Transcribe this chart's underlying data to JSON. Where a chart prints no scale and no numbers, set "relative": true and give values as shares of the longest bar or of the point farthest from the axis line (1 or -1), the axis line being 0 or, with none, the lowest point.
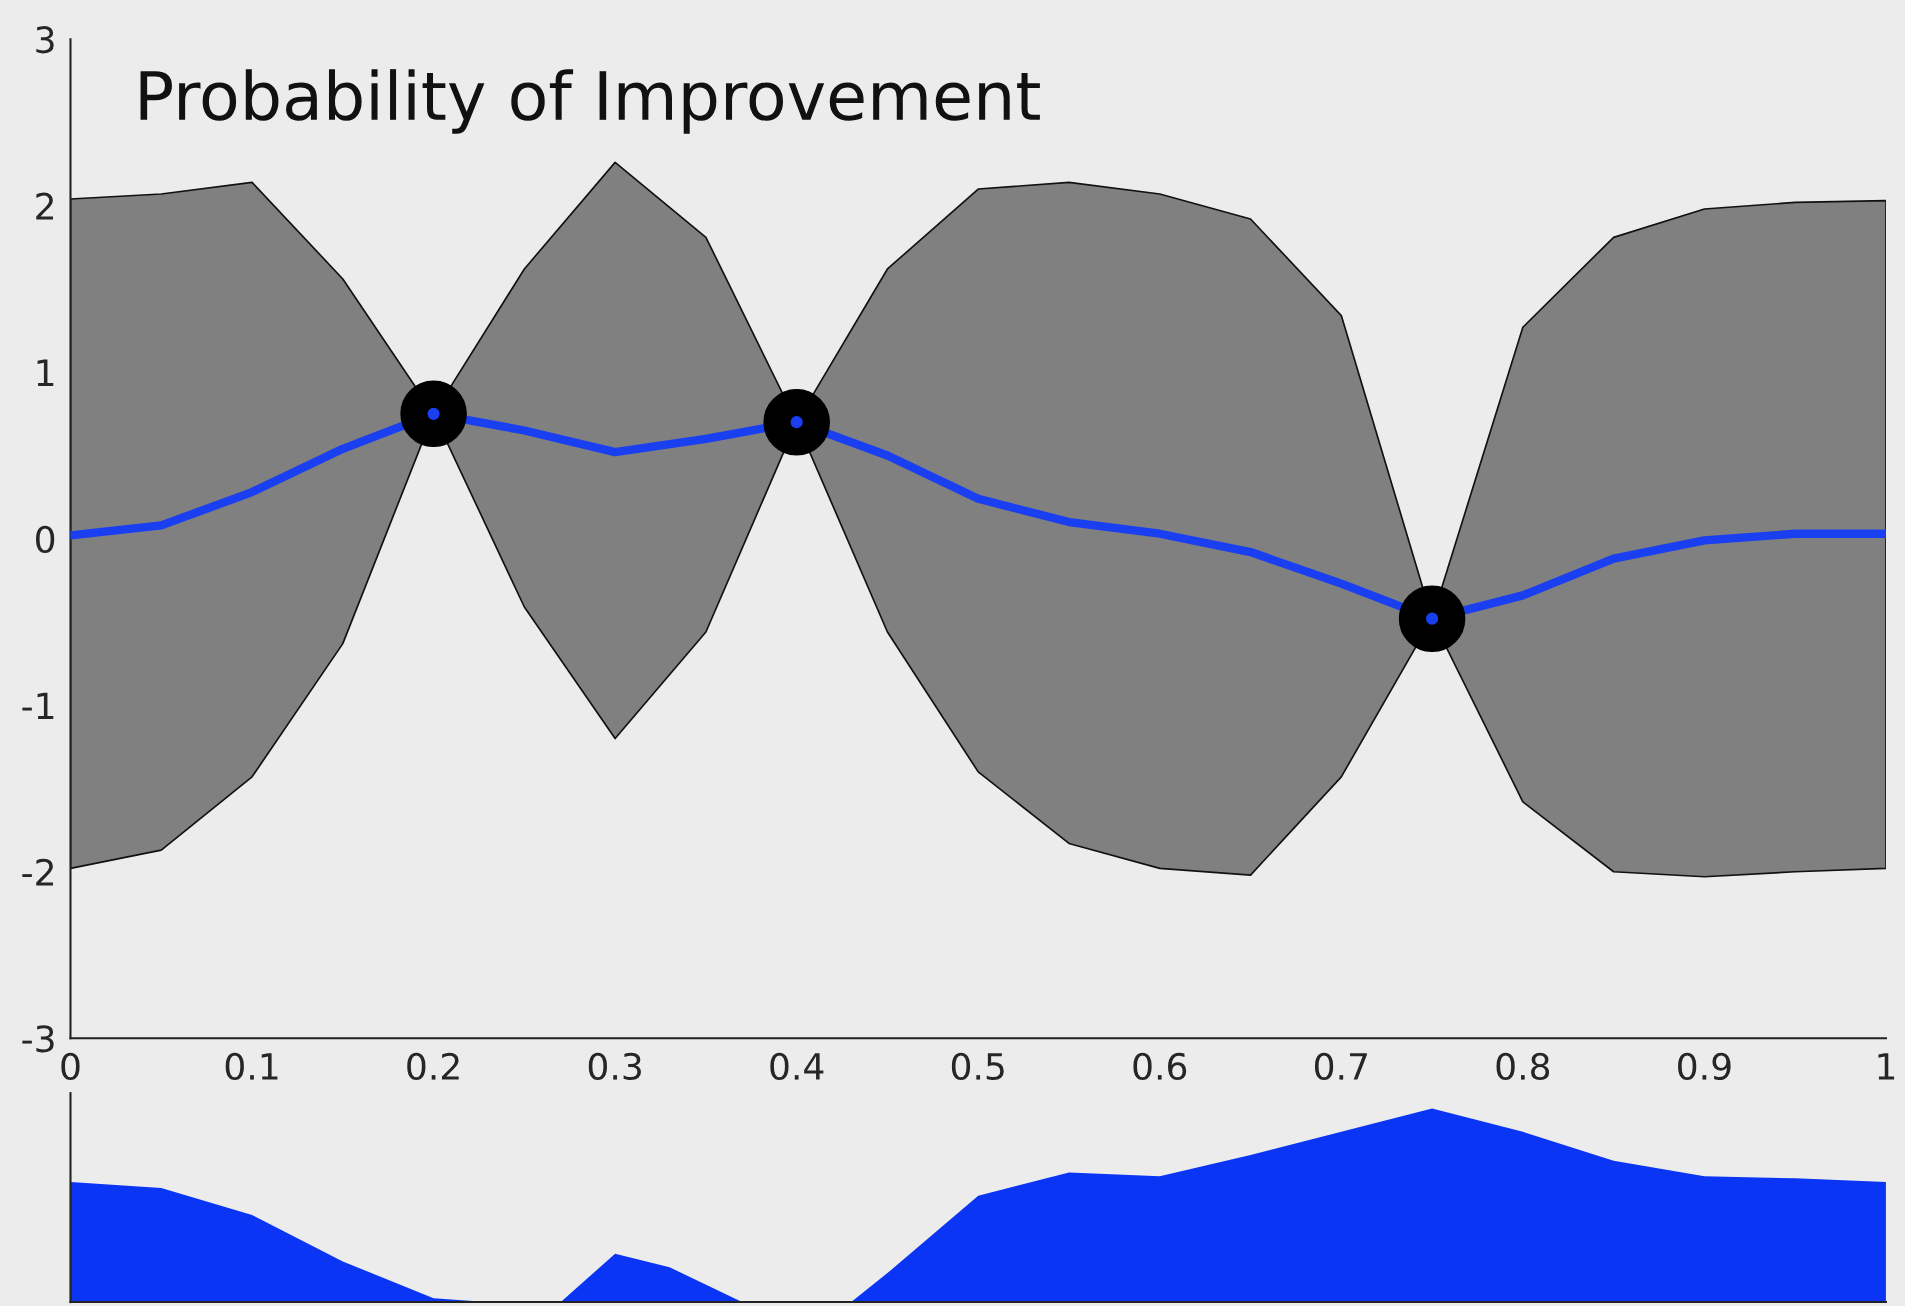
{
  "chart_data": [
    {
      "type": "line",
      "title": "Probability of Improvement",
      "x": [
        0,
        0.05,
        0.1,
        0.15,
        0.2,
        0.25,
        0.3,
        0.35,
        0.4,
        0.45,
        0.5,
        0.55,
        0.6,
        0.65,
        0.7,
        0.75,
        0.8,
        0.85,
        0.9,
        0.95,
        1.0
      ],
      "series": [
        {
          "color": "#1a3ff0",
          "values": [
            0.02,
            0.08,
            0.28,
            0.54,
            0.75,
            0.65,
            0.52,
            0.6,
            0.7,
            0.5,
            0.24,
            0.1,
            0.03,
            -0.08,
            -0.27,
            -0.48,
            -0.34,
            -0.12,
            -0.01,
            0.03,
            0.03
          ],
          "lower": [
            -1.98,
            -1.87,
            -1.43,
            -0.63,
            0.75,
            -0.41,
            -1.2,
            -0.56,
            0.7,
            -0.56,
            -1.4,
            -1.83,
            -1.98,
            -2.02,
            -1.43,
            -0.48,
            -1.58,
            -2.0,
            -2.03,
            -2.0,
            -1.98
          ],
          "upper": [
            2.04,
            2.07,
            2.14,
            1.56,
            0.75,
            1.62,
            2.26,
            1.81,
            0.7,
            1.62,
            2.1,
            2.14,
            2.07,
            1.92,
            1.34,
            -0.48,
            1.27,
            1.81,
            1.98,
            2.02,
            2.03
          ]
        },
        {
          "type": "scatter",
          "color": "#000000",
          "marker": "circle",
          "x": [
            0.2,
            0.4,
            0.75
          ],
          "values": [
            0.75,
            0.7,
            -0.48
          ]
        }
      ],
      "xlim": [
        0,
        1
      ],
      "xticks": [
        0,
        0.1,
        0.2,
        0.3,
        0.4,
        0.5,
        0.6,
        0.7,
        0.8,
        0.9,
        1
      ],
      "ylim": [
        -3,
        3
      ],
      "yticks": [
        -3,
        -2,
        -1,
        0,
        1,
        2,
        3
      ],
      "grid": false,
      "legend": false
    },
    {
      "type": "area",
      "relative": true,
      "x": [
        0,
        0.05,
        0.1,
        0.15,
        0.2,
        0.23,
        0.27,
        0.3,
        0.33,
        0.37,
        0.43,
        0.45,
        0.5,
        0.55,
        0.6,
        0.65,
        0.7,
        0.75,
        0.8,
        0.85,
        0.9,
        0.95,
        1.0
      ],
      "series": [
        {
          "color": "#0a35f5",
          "values": [
            0.62,
            0.59,
            0.45,
            0.21,
            0.02,
            0,
            0,
            0.25,
            0.18,
            0,
            0,
            0.15,
            0.55,
            0.67,
            0.65,
            0.76,
            0.88,
            1,
            0.88,
            0.73,
            0.65,
            0.64,
            0.62
          ]
        }
      ],
      "xlim": [
        0,
        1
      ],
      "xticks": [
        0,
        0.1,
        0.2,
        0.3,
        0.4,
        0.5,
        0.6,
        0.7,
        0.8,
        0.9,
        1
      ],
      "tick_labels": false,
      "grid": false,
      "legend": false
    }
  ]
}
